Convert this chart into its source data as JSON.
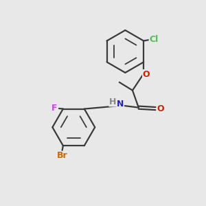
{
  "background_color": "#e8e8e8",
  "bond_color": "#3a3a3a",
  "lw": 1.6,
  "atom_labels": {
    "Cl": {
      "color": "#4ec04e"
    },
    "O": {
      "color": "#cc2200"
    },
    "N": {
      "color": "#2222bb"
    },
    "H": {
      "color": "#888888"
    },
    "F": {
      "color": "#cc44ee"
    },
    "Br": {
      "color": "#cc6600"
    }
  },
  "fontsize": 9,
  "figsize": [
    3.0,
    3.0
  ],
  "dpi": 100
}
